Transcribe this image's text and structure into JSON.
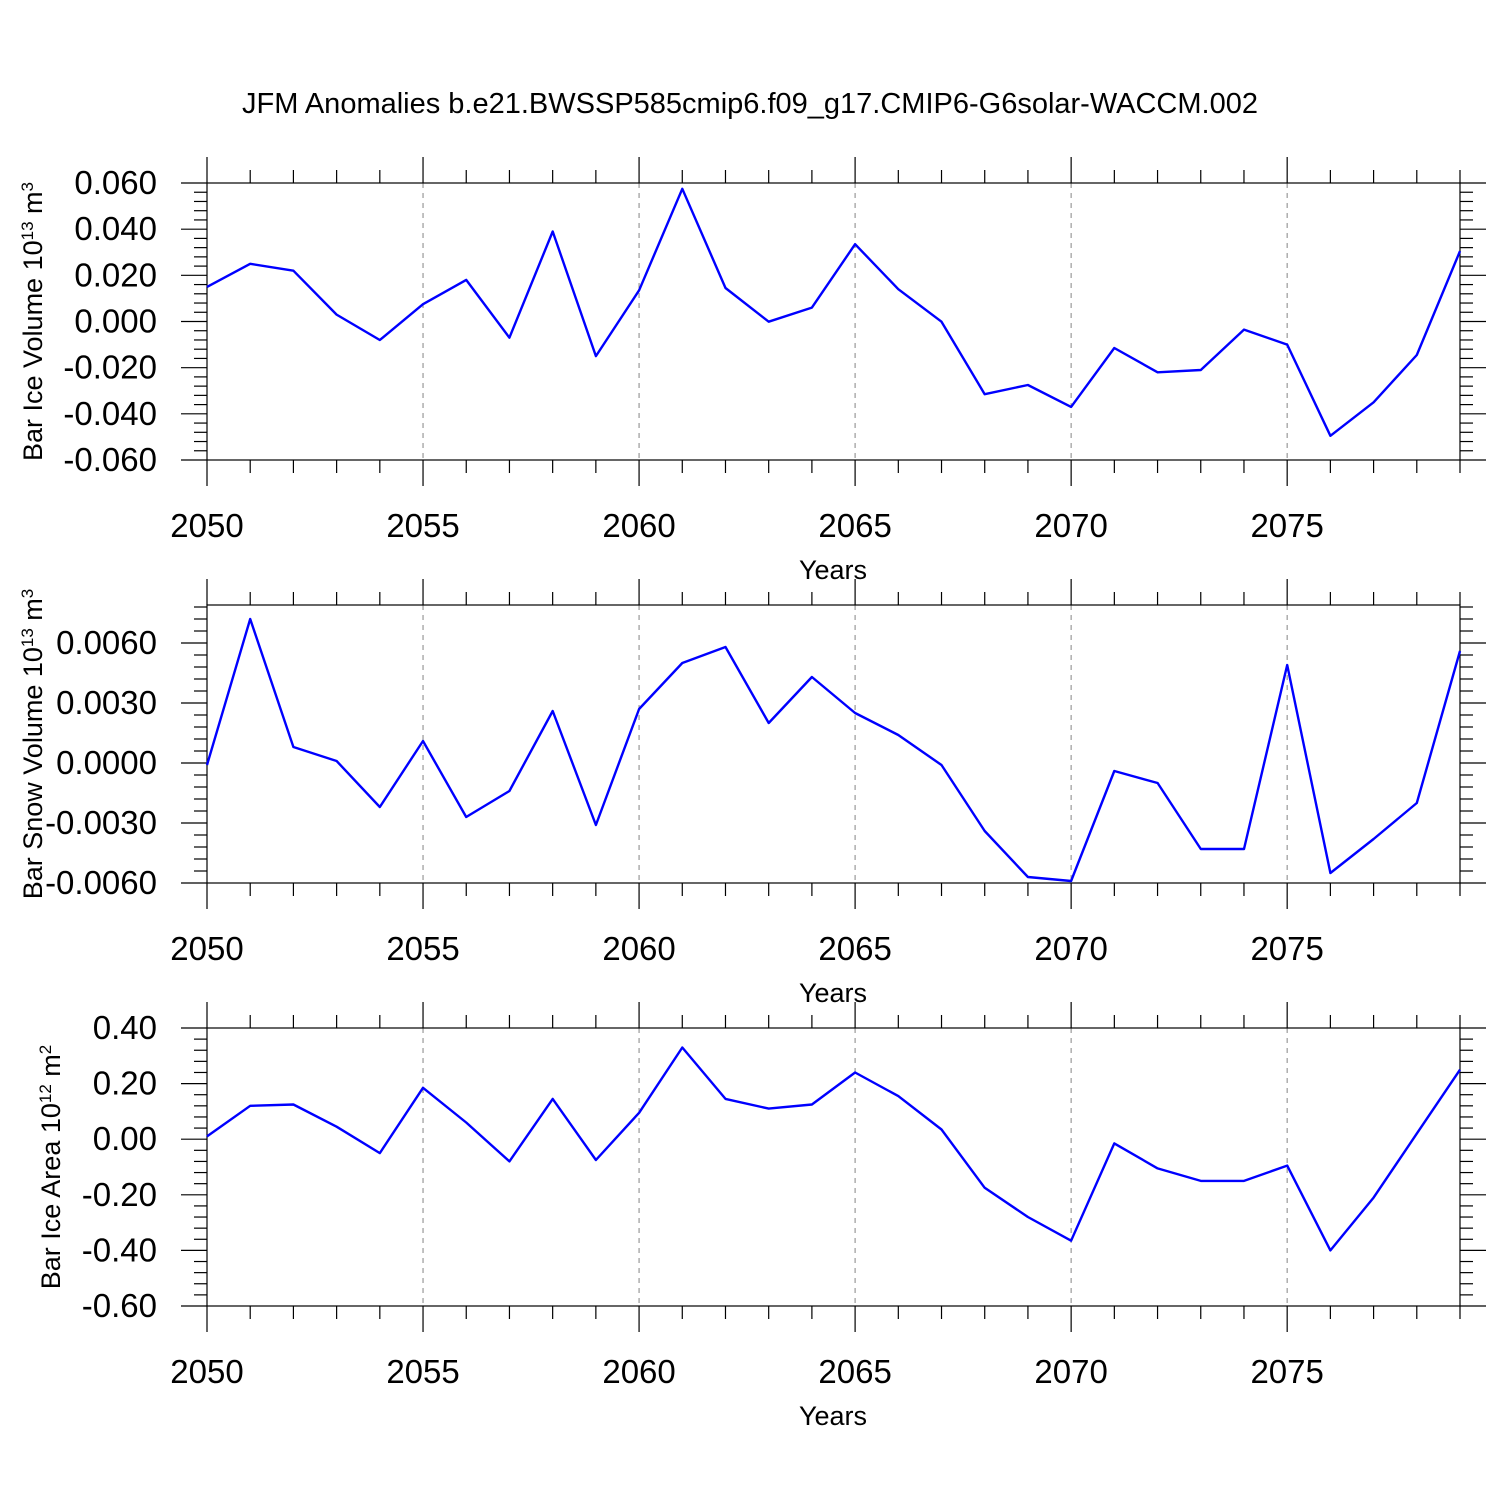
{
  "title": "JFM Anomalies b.e21.BWSSP585cmip6.f09_g17.CMIP6-G6solar-WACCM.002",
  "style": {
    "line_color": "#0000ff",
    "grid_color": "#999999",
    "axis_color": "#000000"
  },
  "chart_data": [
    {
      "type": "line",
      "title": "",
      "xlabel": "Years",
      "ylabel": "Bar Ice Volume 10",
      "ylabel_exp": "13",
      "ylabel_unit": " m",
      "ylabel_unit_exp": "3",
      "xlim": [
        2050,
        2079
      ],
      "ylim": [
        -0.06,
        0.06
      ],
      "yticks": [
        -0.06,
        -0.04,
        -0.02,
        0.0,
        0.02,
        0.04,
        0.06
      ],
      "ytick_labels": [
        "-0.060",
        "-0.040",
        "-0.020",
        "0.000",
        "0.020",
        "0.040",
        "0.060"
      ],
      "xticks": [
        2050,
        2055,
        2060,
        2065,
        2070,
        2075
      ],
      "xtick_labels": [
        "2050",
        "2055",
        "2060",
        "2065",
        "2070",
        "2075"
      ],
      "x": [
        2050,
        2051,
        2052,
        2053,
        2054,
        2055,
        2056,
        2057,
        2058,
        2059,
        2060,
        2061,
        2062,
        2063,
        2064,
        2065,
        2066,
        2067,
        2068,
        2069,
        2070,
        2071,
        2072,
        2073,
        2074,
        2075,
        2076,
        2077,
        2078,
        2079
      ],
      "series": [
        {
          "values": [
            0.015,
            0.025,
            0.022,
            0.003,
            -0.008,
            0.0075,
            0.018,
            -0.007,
            0.039,
            -0.015,
            0.0135,
            0.0575,
            0.0145,
            -0.0001,
            0.006,
            0.0335,
            0.014,
            -0.0001,
            -0.0315,
            -0.0275,
            -0.037,
            -0.0115,
            -0.022,
            -0.021,
            -0.0035,
            -0.01,
            -0.0495,
            -0.035,
            -0.0145,
            0.0305
          ]
        }
      ],
      "grid": "vertical dashed at labelled x ticks"
    },
    {
      "type": "line",
      "title": "",
      "xlabel": "Years",
      "ylabel": "Bar Snow Volume 10",
      "ylabel_exp": "13",
      "ylabel_unit": " m",
      "ylabel_unit_exp": "3",
      "xlim": [
        2050,
        2079
      ],
      "ylim": [
        -0.006,
        0.0079
      ],
      "yticks": [
        -0.006,
        -0.003,
        0.0,
        0.003,
        0.006
      ],
      "ytick_labels": [
        "-0.0060",
        "-0.0030",
        "0.0000",
        "0.0030",
        "0.0060"
      ],
      "xticks": [
        2050,
        2055,
        2060,
        2065,
        2070,
        2075
      ],
      "xtick_labels": [
        "2050",
        "2055",
        "2060",
        "2065",
        "2070",
        "2075"
      ],
      "x": [
        2050,
        2051,
        2052,
        2053,
        2054,
        2055,
        2056,
        2057,
        2058,
        2059,
        2060,
        2061,
        2062,
        2063,
        2064,
        2065,
        2066,
        2067,
        2068,
        2069,
        2070,
        2071,
        2072,
        2073,
        2074,
        2075,
        2076,
        2077,
        2078,
        2079
      ],
      "series": [
        {
          "values": [
            -0.0001,
            0.0072,
            0.0008,
            0.0001,
            -0.0022,
            0.0011,
            -0.0027,
            -0.0014,
            0.0026,
            -0.0031,
            0.0027,
            0.005,
            0.0058,
            0.002,
            0.0043,
            0.0025,
            0.0014,
            -0.0001,
            -0.0034,
            -0.0057,
            -0.0059,
            -0.0004,
            -0.001,
            -0.0043,
            -0.0043,
            0.0049,
            -0.0055,
            -0.0038,
            -0.002,
            0.0056
          ]
        }
      ],
      "grid": "vertical dashed at labelled x ticks"
    },
    {
      "type": "line",
      "title": "",
      "xlabel": "Years",
      "ylabel": "Bar Ice Area 10",
      "ylabel_exp": "12",
      "ylabel_unit": " m",
      "ylabel_unit_exp": "2",
      "xlim": [
        2050,
        2079
      ],
      "ylim": [
        -0.6,
        0.4
      ],
      "yticks": [
        -0.6,
        -0.4,
        -0.2,
        0.0,
        0.2,
        0.4
      ],
      "ytick_labels": [
        "-0.60",
        "-0.40",
        "-0.20",
        "0.00",
        "0.20",
        "0.40"
      ],
      "xticks": [
        2050,
        2055,
        2060,
        2065,
        2070,
        2075
      ],
      "xtick_labels": [
        "2050",
        "2055",
        "2060",
        "2065",
        "2070",
        "2075"
      ],
      "x": [
        2050,
        2051,
        2052,
        2053,
        2054,
        2055,
        2056,
        2057,
        2058,
        2059,
        2060,
        2061,
        2062,
        2063,
        2064,
        2065,
        2066,
        2067,
        2068,
        2069,
        2070,
        2071,
        2072,
        2073,
        2074,
        2075,
        2076,
        2077,
        2078,
        2079
      ],
      "series": [
        {
          "values": [
            0.01,
            0.12,
            0.125,
            0.045,
            -0.05,
            0.185,
            0.06,
            -0.08,
            0.145,
            -0.075,
            0.095,
            0.33,
            0.145,
            0.11,
            0.125,
            0.24,
            0.155,
            0.035,
            -0.175,
            -0.28,
            -0.365,
            -0.015,
            -0.105,
            -0.15,
            -0.15,
            -0.095,
            -0.4,
            -0.21,
            0.02,
            0.25
          ]
        }
      ],
      "grid": "vertical dashed at labelled x ticks"
    }
  ]
}
